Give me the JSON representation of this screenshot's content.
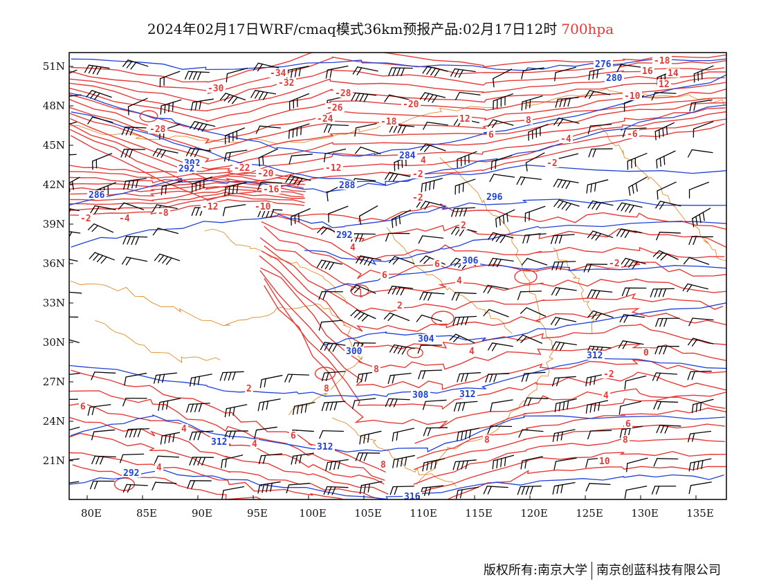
{
  "title": {
    "main": "2024年02月17日WRF/cmaq模式36km预报产品:02月17日12时",
    "level": "700hpa"
  },
  "colors": {
    "temperature_isotherm": "#e53935",
    "geopotential_height": "#1e40d8",
    "coastline_border": "#e08a2a",
    "wind_barb": "#000000",
    "title_level": "#e53935"
  },
  "axes": {
    "lon_labels": [
      "80E",
      "85E",
      "90E",
      "95E",
      "100E",
      "105E",
      "110E",
      "115E",
      "120E",
      "125E",
      "130E",
      "135E"
    ],
    "lat_labels": [
      "51N",
      "48N",
      "45N",
      "42N",
      "39N",
      "36N",
      "33N",
      "30N",
      "27N",
      "24N",
      "21N"
    ]
  },
  "height_labels": [
    "276",
    "280",
    "284",
    "288",
    "292",
    "296",
    "300",
    "304",
    "308",
    "312",
    "316",
    "302",
    "292",
    "284",
    "286"
  ],
  "temp_labels": [
    "-34",
    "-32",
    "-30",
    "-28",
    "-26",
    "-24",
    "-22",
    "-20",
    "-18",
    "-16",
    "-14",
    "-13",
    "-12",
    "-10",
    "-8",
    "-6",
    "-4",
    "-2",
    "0",
    "2",
    "4",
    "6",
    "8",
    "10",
    "12",
    "14",
    "16"
  ],
  "credit": {
    "left": "版权所有:南京大学",
    "right": "南京创蓝科技有限公司"
  }
}
